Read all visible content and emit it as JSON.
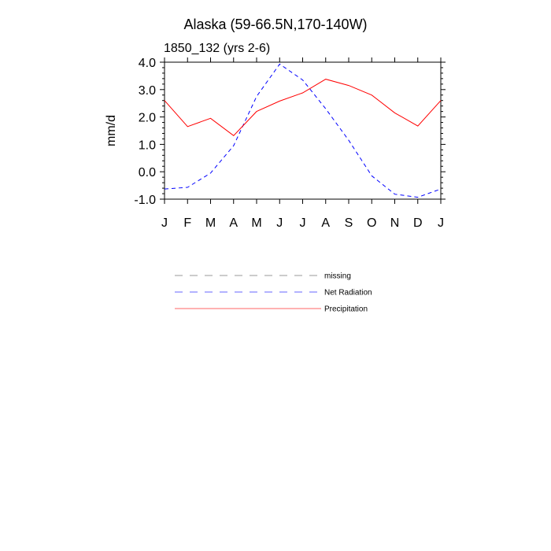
{
  "chart_data": {
    "type": "line",
    "title": "Alaska (59-66.5N,170-140W)",
    "subtitle": "1850_132 (yrs 2-6)",
    "xlabel": "",
    "ylabel": "mm/d",
    "categories": [
      "J",
      "F",
      "M",
      "A",
      "M",
      "J",
      "J",
      "A",
      "S",
      "O",
      "N",
      "D",
      "J"
    ],
    "ylim": [
      -1.0,
      4.0
    ],
    "yticks": [
      "-1.0",
      "0.0",
      "1.0",
      "2.0",
      "3.0",
      "4.0"
    ],
    "series": [
      {
        "name": "Net Radiation",
        "color": "#0000ff",
        "style": "dashed",
        "values": [
          -0.63,
          -0.57,
          -0.05,
          0.95,
          2.75,
          3.93,
          3.35,
          2.3,
          1.15,
          -0.15,
          -0.82,
          -0.93,
          -0.63
        ]
      },
      {
        "name": "Precipitation",
        "color": "#ff0000",
        "style": "solid",
        "values": [
          2.6,
          1.65,
          1.95,
          1.32,
          2.2,
          2.58,
          2.88,
          3.38,
          3.15,
          2.8,
          2.15,
          1.67,
          2.6
        ]
      }
    ],
    "legend": [
      {
        "label": "missing",
        "color": "#999999",
        "style": "dashed"
      },
      {
        "label": "Net Radiation",
        "color": "#6666ff",
        "style": "dashed"
      },
      {
        "label": "Precipitation",
        "color": "#ff6666",
        "style": "solid"
      }
    ],
    "legend_position": "below"
  }
}
